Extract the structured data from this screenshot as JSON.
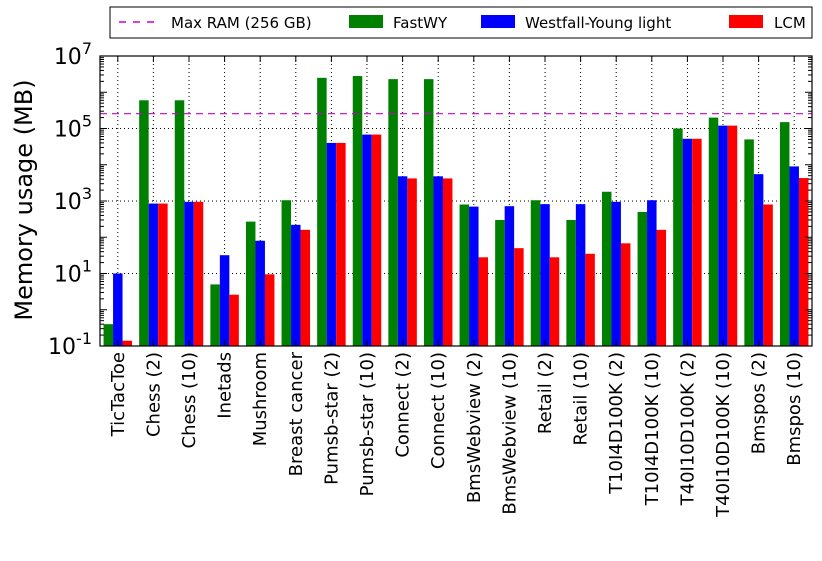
{
  "chart_data": {
    "type": "bar",
    "title": "",
    "xlabel": "",
    "ylabel": "Memory usage (MB)",
    "yscale": "log",
    "ylim": [
      0.1,
      10000000
    ],
    "yticks": [
      {
        "value": 0.1,
        "base": "10",
        "exp": "-1"
      },
      {
        "value": 10,
        "base": "10",
        "exp": "1"
      },
      {
        "value": 1000,
        "base": "10",
        "exp": "3"
      },
      {
        "value": 100000,
        "base": "10",
        "exp": "5"
      },
      {
        "value": 10000000,
        "base": "10",
        "exp": "7"
      }
    ],
    "grid": true,
    "legend_position": "top",
    "categories": [
      "TicTacToe",
      "Chess (2)",
      "Chess (10)",
      "Inetads",
      "Mushroom",
      "Breast cancer",
      "Pumsb-star (2)",
      "Pumsb-star (10)",
      "Connect (2)",
      "Connect (10)",
      "BmsWebview (2)",
      "BmsWebview (10)",
      "Retail (2)",
      "Retail (10)",
      "T10I4D100K (2)",
      "T10I4D100K (10)",
      "T40I10D100K (2)",
      "T40I10D100K (10)",
      "Bmspos (2)",
      "Bmspos (10)"
    ],
    "series": [
      {
        "name": "FastWY",
        "color": "#008000",
        "values": [
          0.4,
          600000,
          600000,
          5,
          270,
          1050,
          2500000,
          2800000,
          2300000,
          2300000,
          800,
          300,
          1050,
          300,
          1800,
          500,
          100000,
          200000,
          50000,
          150000
        ]
      },
      {
        "name": "Westfall-Young light",
        "color": "#0000ff",
        "values": [
          10,
          850,
          950,
          32,
          80,
          220,
          40000,
          68000,
          4800,
          4800,
          700,
          720,
          820,
          820,
          950,
          1050,
          52000,
          120000,
          5500,
          9000
        ]
      },
      {
        "name": "LCM",
        "color": "#ff0000",
        "values": [
          0.14,
          850,
          950,
          2.6,
          9.5,
          160,
          40000,
          68000,
          4200,
          4200,
          28,
          50,
          28,
          35,
          68,
          160,
          52000,
          120000,
          800,
          4300
        ]
      }
    ],
    "reference_lines": [
      {
        "name": "Max RAM (256 GB)",
        "value": 256000,
        "color": "#cc00cc",
        "style": "dashed"
      }
    ]
  }
}
